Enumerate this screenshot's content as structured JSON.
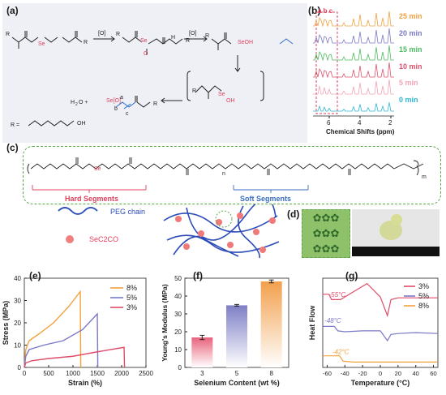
{
  "panels": {
    "a": "(a)",
    "b": "(b)",
    "c": "(c)",
    "d": "(d)",
    "e": "(e)",
    "f": "(f)",
    "g": "(g)"
  },
  "scheme_a": {
    "ox1": "[O]",
    "ox2": "[O]",
    "seoh": "SeOH",
    "se_o": "O",
    "h": "H",
    "byproducts": "H₂O    +  Se[O]  +",
    "abc": [
      "a",
      "b",
      "c"
    ],
    "r_def": "R =",
    "r_group": "HO-(CH₂)₄-O"
  },
  "nmr_b": {
    "header": "a b c",
    "times": [
      "25 min",
      "20 min",
      "15 min",
      "10 min",
      "5 min",
      "0 min"
    ],
    "time_colors": [
      "#f0a040",
      "#7b79c6",
      "#4dbb5f",
      "#e0506a",
      "#f2a3b5",
      "#2eb6d4"
    ],
    "ticks": [
      "6",
      "4",
      "2"
    ],
    "xlabel": "Chemical Shifts (ppm)"
  },
  "polymer_c": {
    "hard": "Hard Segments",
    "soft": "Soft Segments",
    "m": "m",
    "n": "n"
  },
  "legend_c": {
    "peg": "PEG chain",
    "sec2co": "SeC2CO"
  },
  "chart_data": [
    {
      "panel": "e",
      "type": "line",
      "xlabel": "Strain (%)",
      "ylabel": "Stress (MPa)",
      "xlim": [
        0,
        2500
      ],
      "ylim": [
        0,
        40
      ],
      "xticks": [
        0,
        500,
        1000,
        1500,
        2000,
        2500
      ],
      "yticks": [
        0,
        10,
        20,
        30,
        40
      ],
      "series": [
        {
          "name": "8%",
          "color": "#f2a23c",
          "x": [
            0,
            30,
            100,
            300,
            600,
            900,
            1150,
            1160
          ],
          "y": [
            0,
            8,
            12,
            15,
            20,
            27,
            34,
            0
          ]
        },
        {
          "name": "5%",
          "color": "#7a78c8",
          "x": [
            0,
            30,
            100,
            400,
            800,
            1200,
            1500,
            1510
          ],
          "y": [
            0,
            5,
            8,
            10,
            12,
            17,
            24,
            0
          ]
        },
        {
          "name": "3%",
          "color": "#e04c68",
          "x": [
            0,
            30,
            150,
            500,
            1000,
            1500,
            2050,
            2060
          ],
          "y": [
            0,
            2,
            3,
            4,
            5,
            7,
            9,
            0
          ]
        }
      ]
    },
    {
      "panel": "f",
      "type": "bar",
      "xlabel": "Selenium Content (wt %)",
      "ylabel": "Young's Modulus (MPa)",
      "categories": [
        "3",
        "5",
        "8"
      ],
      "values": [
        16.8,
        34.8,
        48.2
      ],
      "errors": [
        1.2,
        0.5,
        0.8
      ],
      "ylim": [
        0,
        50
      ],
      "yticks": [
        0,
        10,
        20,
        30,
        40,
        50
      ],
      "colors": [
        "#e8627c",
        "#7e7fc6",
        "#f2a04c"
      ]
    },
    {
      "panel": "g",
      "type": "line",
      "xlabel": "Temperature (°C)",
      "ylabel": "Heat Flow",
      "xlim": [
        -65,
        65
      ],
      "xticks": [
        -60,
        -40,
        -20,
        0,
        20,
        40,
        60
      ],
      "series": [
        {
          "name": "3%",
          "color": "#e04c68",
          "x": [
            -65,
            -58,
            -55,
            -45,
            -30,
            -15,
            0,
            8,
            12,
            20,
            40,
            65
          ],
          "y": [
            8.2,
            8.2,
            7.6,
            7.6,
            8.5,
            9.4,
            7.9,
            5.8,
            7.6,
            7.8,
            7.8,
            7.8
          ]
        },
        {
          "name": "5%",
          "color": "#7a78c8",
          "x": [
            -65,
            -52,
            -48,
            -40,
            -20,
            0,
            8,
            12,
            20,
            40,
            65
          ],
          "y": [
            4.6,
            4.6,
            4.1,
            4.0,
            4.1,
            4.1,
            3.0,
            3.7,
            3.8,
            3.9,
            3.8
          ]
        },
        {
          "name": "8%",
          "color": "#f2a23c",
          "x": [
            -65,
            -46,
            -42,
            -30,
            -10,
            10,
            30,
            65
          ],
          "y": [
            1.3,
            1.3,
            0.7,
            0.6,
            0.6,
            0.6,
            0.6,
            0.6
          ]
        }
      ],
      "annotations": [
        "-55°C",
        "-48°C",
        "-42°C"
      ]
    }
  ]
}
